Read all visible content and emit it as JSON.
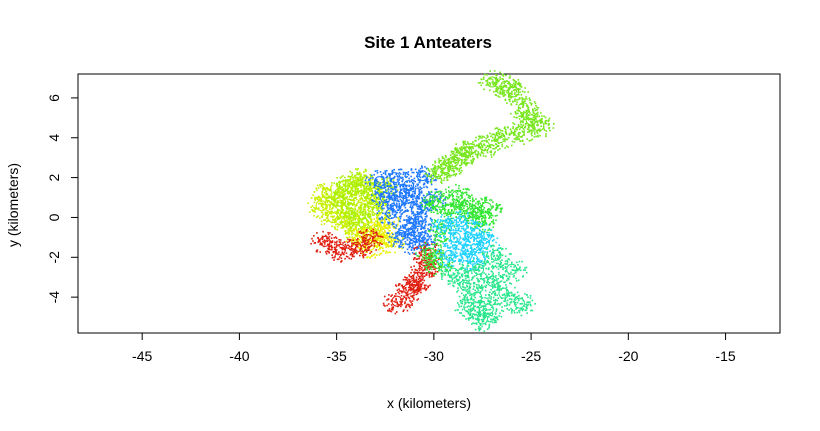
{
  "chart_data": {
    "type": "scatter",
    "title": "Site 1 Anteaters",
    "xlabel": "x (kilometers)",
    "ylabel": "y (kilometers)",
    "xlim": [
      -48.3,
      -12.2
    ],
    "ylim": [
      -5.8,
      7.2
    ],
    "x_ticks": [
      -45,
      -40,
      -35,
      -30,
      -25,
      -20,
      -15
    ],
    "y_ticks": [
      -4,
      -2,
      0,
      2,
      4,
      6
    ],
    "grid": false,
    "legend": "none",
    "series": [
      {
        "color": "#c8f000",
        "points": [
          [
            -35.5,
            1.2
          ],
          [
            -34.8,
            0.8
          ],
          [
            -34.2,
            1.4
          ],
          [
            -33.8,
            0.5
          ],
          [
            -34.5,
            -0.2
          ],
          [
            -33.5,
            1.8
          ],
          [
            -35.2,
            0.0
          ],
          [
            -34.0,
            -0.6
          ],
          [
            -33.2,
            0.9
          ],
          [
            -35.8,
            0.6
          ]
        ]
      },
      {
        "color": "#a8f000",
        "points": [
          [
            -34.6,
            1.6
          ],
          [
            -33.9,
            1.9
          ],
          [
            -33.4,
            1.2
          ],
          [
            -34.9,
            1.0
          ],
          [
            -32.9,
            0.4
          ],
          [
            -33.6,
            -0.3
          ],
          [
            -34.3,
            0.2
          ],
          [
            -32.6,
            1.5
          ]
        ]
      },
      {
        "color": "#e8f000",
        "points": [
          [
            -33.8,
            -1.0
          ],
          [
            -33.3,
            -1.4
          ],
          [
            -32.8,
            -0.9
          ],
          [
            -32.3,
            -1.2
          ],
          [
            -33.0,
            -0.6
          ],
          [
            -32.5,
            -0.3
          ]
        ]
      },
      {
        "color": "#1e78ff",
        "points": [
          [
            -32.8,
            1.8
          ],
          [
            -32.0,
            2.0
          ],
          [
            -31.3,
            1.6
          ],
          [
            -30.6,
            2.1
          ],
          [
            -31.8,
            0.8
          ],
          [
            -30.9,
            0.4
          ],
          [
            -31.2,
            -0.5
          ],
          [
            -30.5,
            -1.0
          ],
          [
            -32.2,
            0.2
          ],
          [
            -31.5,
            1.2
          ],
          [
            -30.2,
            0.9
          ],
          [
            -30.8,
            -0.2
          ],
          [
            -31.0,
            -1.3
          ],
          [
            -32.5,
            1.0
          ],
          [
            -31.7,
            -0.9
          ]
        ]
      },
      {
        "color": "#e01e10",
        "points": [
          [
            -31.9,
            -4.2
          ],
          [
            -31.3,
            -3.6
          ],
          [
            -30.8,
            -3.0
          ],
          [
            -30.5,
            -2.4
          ],
          [
            -30.4,
            -1.8
          ],
          [
            -35.6,
            -1.2
          ],
          [
            -34.8,
            -1.6
          ],
          [
            -34.0,
            -1.5
          ],
          [
            -33.4,
            -1.1
          ],
          [
            -31.0,
            -3.4
          ]
        ]
      },
      {
        "color": "#32e632",
        "points": [
          [
            -30.0,
            0.8
          ],
          [
            -29.2,
            0.4
          ],
          [
            -28.4,
            0.6
          ],
          [
            -27.8,
            0.2
          ],
          [
            -27.3,
            0.5
          ],
          [
            -29.6,
            -0.6
          ],
          [
            -30.2,
            -1.8
          ],
          [
            -29.8,
            -2.3
          ],
          [
            -28.8,
            1.1
          ],
          [
            -27.6,
            -0.2
          ]
        ]
      },
      {
        "color": "#1ed2ff",
        "points": [
          [
            -29.5,
            -0.4
          ],
          [
            -28.9,
            -1.0
          ],
          [
            -28.3,
            -1.6
          ],
          [
            -27.8,
            -0.8
          ],
          [
            -29.2,
            -1.9
          ],
          [
            -28.0,
            -2.1
          ],
          [
            -28.6,
            -0.2
          ],
          [
            -27.4,
            -1.3
          ]
        ]
      },
      {
        "color": "#28e68c",
        "points": [
          [
            -29.0,
            -2.8
          ],
          [
            -28.4,
            -3.4
          ],
          [
            -27.8,
            -4.0
          ],
          [
            -27.2,
            -4.6
          ],
          [
            -27.0,
            -3.2
          ],
          [
            -26.4,
            -3.8
          ],
          [
            -26.0,
            -2.6
          ],
          [
            -27.5,
            -5.1
          ],
          [
            -28.2,
            -4.5
          ],
          [
            -25.6,
            -4.3
          ],
          [
            -27.7,
            -2.6
          ],
          [
            -26.8,
            -1.9
          ]
        ]
      },
      {
        "color": "#78e61e",
        "points": [
          [
            -29.8,
            2.3
          ],
          [
            -29.0,
            2.8
          ],
          [
            -28.4,
            3.3
          ],
          [
            -27.4,
            3.6
          ],
          [
            -26.6,
            4.0
          ],
          [
            -25.6,
            4.3
          ],
          [
            -24.6,
            4.6
          ],
          [
            -27.0,
            6.8
          ],
          [
            -26.3,
            6.6
          ],
          [
            -25.9,
            6.3
          ],
          [
            -25.4,
            5.5
          ],
          [
            -25.0,
            4.9
          ],
          [
            -28.3,
            3.3
          ],
          [
            -29.4,
            2.5
          ]
        ]
      }
    ]
  }
}
